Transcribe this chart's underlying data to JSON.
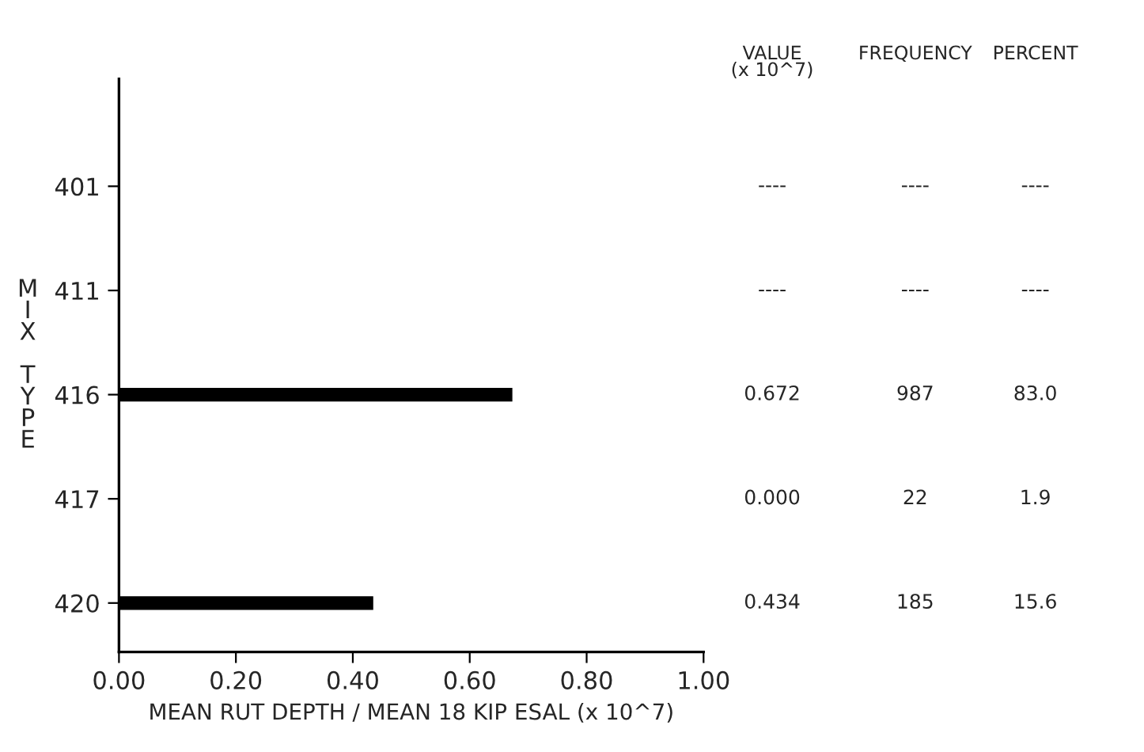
{
  "chart_data": {
    "type": "bar",
    "orientation": "horizontal",
    "categories": [
      "401",
      "411",
      "416",
      "417",
      "420"
    ],
    "values": [
      null,
      null,
      0.672,
      0.0,
      0.434
    ],
    "value_labels": [
      "----",
      "----",
      "0.672",
      "0.000",
      "0.434"
    ],
    "color": "#000000",
    "xlabel": "MEAN RUT DEPTH / MEAN 18 KIP ESAL (x 10^7)",
    "ylabel": "MIX TYPE",
    "xlim": [
      0,
      1
    ],
    "xticks": [
      {
        "value": 0,
        "label": "0.00"
      },
      {
        "value": 0.2,
        "label": "0.20"
      },
      {
        "value": 0.4,
        "label": "0.40"
      },
      {
        "value": 0.6,
        "label": "0.60"
      },
      {
        "value": 0.8,
        "label": "0.80"
      },
      {
        "value": 1,
        "label": "1.00"
      }
    ],
    "grid": false,
    "annotations": [
      "VALUE\n(x 10^7)",
      "FREQUENCY",
      "PERCENT",
      "----",
      "----",
      "----",
      "----",
      "987",
      "83.0",
      "22",
      "1.9",
      "185",
      "15.6"
    ]
  }
}
